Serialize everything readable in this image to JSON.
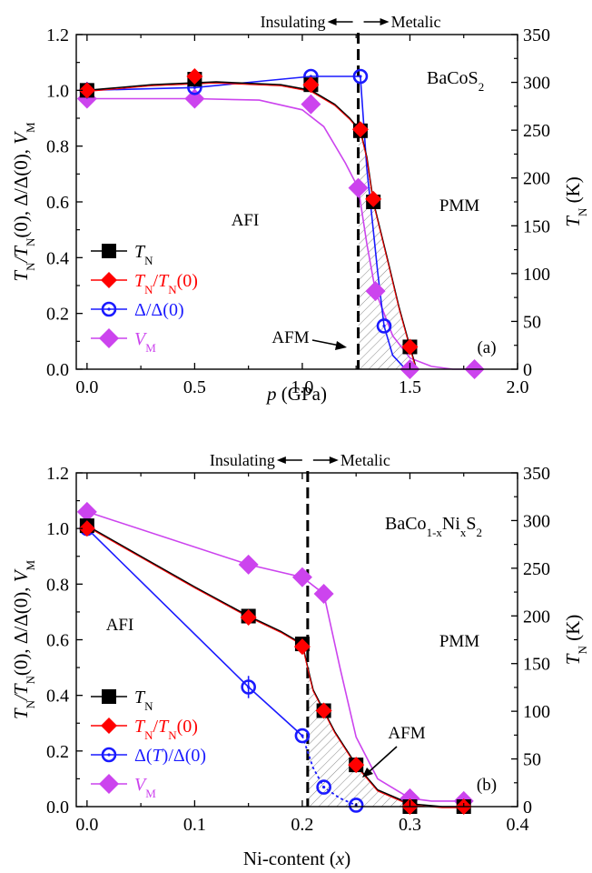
{
  "colors": {
    "tn": "#000000",
    "tn_ratio": "#ff0000",
    "gap": "#1a1aff",
    "vm": "#cc44ee",
    "hatch": "#888888"
  },
  "chart_data": [
    {
      "type": "line",
      "label": "(a)",
      "top_label_left": "Insulating",
      "top_label_right": "Metalic",
      "compound": "BaCoS",
      "compound_sub": "2",
      "xlabel": "p",
      "xlabel_unit": "(GPa)",
      "ylabel_right": "T",
      "ylabel_right_sub": "N",
      "ylabel_right_unit": "(K)",
      "xlim": [
        -0.05,
        2.0
      ],
      "ylim": [
        0,
        1.2
      ],
      "y2lim": [
        0,
        350
      ],
      "xticks": [
        "0.0",
        "0.5",
        "1.0",
        "1.5",
        "2.0"
      ],
      "yticks": [
        "0.0",
        "0.2",
        "0.4",
        "0.6",
        "0.8",
        "1.0",
        "1.2"
      ],
      "y2ticks": [
        "0",
        "50",
        "100",
        "150",
        "200",
        "250",
        "300",
        "350"
      ],
      "transition_x": 1.26,
      "region_labels": {
        "left": "AFI",
        "right": "PMM",
        "afm": "AFM"
      },
      "series": [
        {
          "key": "tn",
          "x": [
            0.0,
            0.5,
            1.04,
            1.27,
            1.33,
            1.5
          ],
          "y": [
            1.0,
            1.04,
            1.02,
            0.855,
            0.6,
            0.08
          ],
          "curve_x": [
            0.0,
            0.3,
            0.6,
            0.9,
            1.04,
            1.15,
            1.22,
            1.27,
            1.3,
            1.33,
            1.4,
            1.45,
            1.5,
            1.53
          ],
          "curve_y": [
            1.0,
            1.02,
            1.03,
            1.02,
            1.0,
            0.95,
            0.9,
            0.855,
            0.76,
            0.6,
            0.38,
            0.22,
            0.08,
            0.0
          ]
        },
        {
          "key": "tn_ratio",
          "x": [
            0.0,
            0.5,
            1.04,
            1.27,
            1.33,
            1.5
          ],
          "y": [
            1.0,
            1.05,
            1.02,
            0.86,
            0.61,
            0.08
          ]
        },
        {
          "key": "gap",
          "x": [
            0.0,
            0.5,
            1.04,
            1.27,
            1.38
          ],
          "y": [
            1.0,
            1.01,
            1.05,
            1.05,
            0.155
          ],
          "yerr": [
            0.03,
            0,
            0,
            0,
            0
          ],
          "curve_x": [
            0.0,
            0.5,
            1.04,
            1.27,
            1.3,
            1.35,
            1.38,
            1.42,
            1.48
          ],
          "curve_y": [
            1.0,
            1.01,
            1.05,
            1.05,
            0.72,
            0.35,
            0.155,
            0.05,
            0.0
          ]
        },
        {
          "key": "vm",
          "x": [
            0.0,
            0.5,
            1.04,
            1.26,
            1.34,
            1.5,
            1.8
          ],
          "y": [
            0.97,
            0.97,
            0.95,
            0.65,
            0.28,
            0.0,
            0.0
          ],
          "curve_x": [
            0.0,
            0.5,
            0.8,
            1.0,
            1.1,
            1.2,
            1.26,
            1.3,
            1.34,
            1.42,
            1.5,
            1.6,
            1.7,
            1.8
          ],
          "curve_y": [
            0.97,
            0.97,
            0.965,
            0.93,
            0.87,
            0.74,
            0.65,
            0.45,
            0.28,
            0.12,
            0.04,
            0.01,
            0.0,
            0.0
          ]
        }
      ]
    },
    {
      "type": "line",
      "label": "(b)",
      "top_label_left": "Insulating",
      "top_label_right": "Metalic",
      "compound": "BaCo",
      "compound_sub": "1-x",
      "compound_mid": "Ni",
      "compound_sub2": "x",
      "compound_end": "S",
      "compound_sub3": "2",
      "xlabel": "Ni-content",
      "xlabel_var": "(x)",
      "ylabel_right": "T",
      "ylabel_right_sub": "N",
      "ylabel_right_unit": "(K)",
      "xlim": [
        -0.01,
        0.4
      ],
      "ylim": [
        0,
        1.2
      ],
      "y2lim": [
        0,
        350
      ],
      "xticks": [
        "0.0",
        "0.1",
        "0.2",
        "0.3",
        "0.4"
      ],
      "yticks": [
        "0.0",
        "0.2",
        "0.4",
        "0.6",
        "0.8",
        "1.0",
        "1.2"
      ],
      "y2ticks": [
        "0",
        "50",
        "100",
        "150",
        "200",
        "250",
        "300",
        "350"
      ],
      "transition_x": 0.205,
      "region_labels": {
        "left": "AFI",
        "right": "PMM",
        "afm": "AFM"
      },
      "series": [
        {
          "key": "tn",
          "x": [
            0.0,
            0.15,
            0.2,
            0.22,
            0.25,
            0.3,
            0.35
          ],
          "y": [
            1.01,
            0.685,
            0.585,
            0.345,
            0.15,
            0.0,
            0.0
          ],
          "curve_x": [
            0.0,
            0.05,
            0.1,
            0.15,
            0.18,
            0.2,
            0.205,
            0.21,
            0.22,
            0.23,
            0.25,
            0.27,
            0.3,
            0.33,
            0.35
          ],
          "curve_y": [
            1.01,
            0.9,
            0.79,
            0.685,
            0.63,
            0.585,
            0.5,
            0.42,
            0.345,
            0.27,
            0.15,
            0.06,
            0.01,
            0.0,
            0.0
          ]
        },
        {
          "key": "tn_ratio",
          "x": [
            0.0,
            0.15,
            0.2,
            0.22,
            0.25,
            0.3,
            0.35
          ],
          "y": [
            1.0,
            0.68,
            0.575,
            0.345,
            0.15,
            0.0,
            0.0
          ]
        },
        {
          "key": "gap",
          "x": [
            0.0,
            0.15,
            0.2,
            0.22,
            0.25
          ],
          "y": [
            1.0,
            0.43,
            0.255,
            0.07,
            0.005
          ],
          "yerr": [
            0,
            0.04,
            0,
            0,
            0
          ],
          "curve_x": [
            0.0,
            0.15,
            0.2
          ],
          "curve_y": [
            1.0,
            0.43,
            0.255
          ],
          "dotted_x": [
            0.2,
            0.21,
            0.22,
            0.235,
            0.25
          ],
          "dotted_y": [
            0.255,
            0.14,
            0.07,
            0.03,
            0.005
          ]
        },
        {
          "key": "vm",
          "x": [
            0.0,
            0.15,
            0.2,
            0.22,
            0.3,
            0.35
          ],
          "y": [
            1.06,
            0.87,
            0.825,
            0.765,
            0.03,
            0.02
          ],
          "curve_x": [
            0.0,
            0.15,
            0.2,
            0.22,
            0.235,
            0.25,
            0.27,
            0.3,
            0.32,
            0.35
          ],
          "curve_y": [
            1.06,
            0.87,
            0.825,
            0.765,
            0.5,
            0.25,
            0.1,
            0.03,
            0.02,
            0.02
          ]
        }
      ]
    }
  ],
  "legend": [
    {
      "key": "tn",
      "base": "T",
      "sub": "N",
      "tail": "",
      "sub2": "",
      "tail2": ""
    },
    {
      "key": "tn_ratio",
      "base": "T",
      "sub": "N",
      "tail": "/T",
      "sub2": "N",
      "tail2": "(0)"
    },
    {
      "key": "gap",
      "base": "Δ/Δ(0)",
      "sub": "",
      "tail": "",
      "sub2": "",
      "tail2": "",
      "alt": "Δ(T)/Δ(0)"
    },
    {
      "key": "vm",
      "base": "V",
      "sub": "M",
      "tail": "",
      "sub2": "",
      "tail2": ""
    }
  ],
  "ylabel_left": {
    "p1": "T",
    "s1": "N",
    "p2": "/T",
    "s2": "N",
    "p3": "(0),  Δ/Δ(0),  V",
    "s3": "M"
  }
}
